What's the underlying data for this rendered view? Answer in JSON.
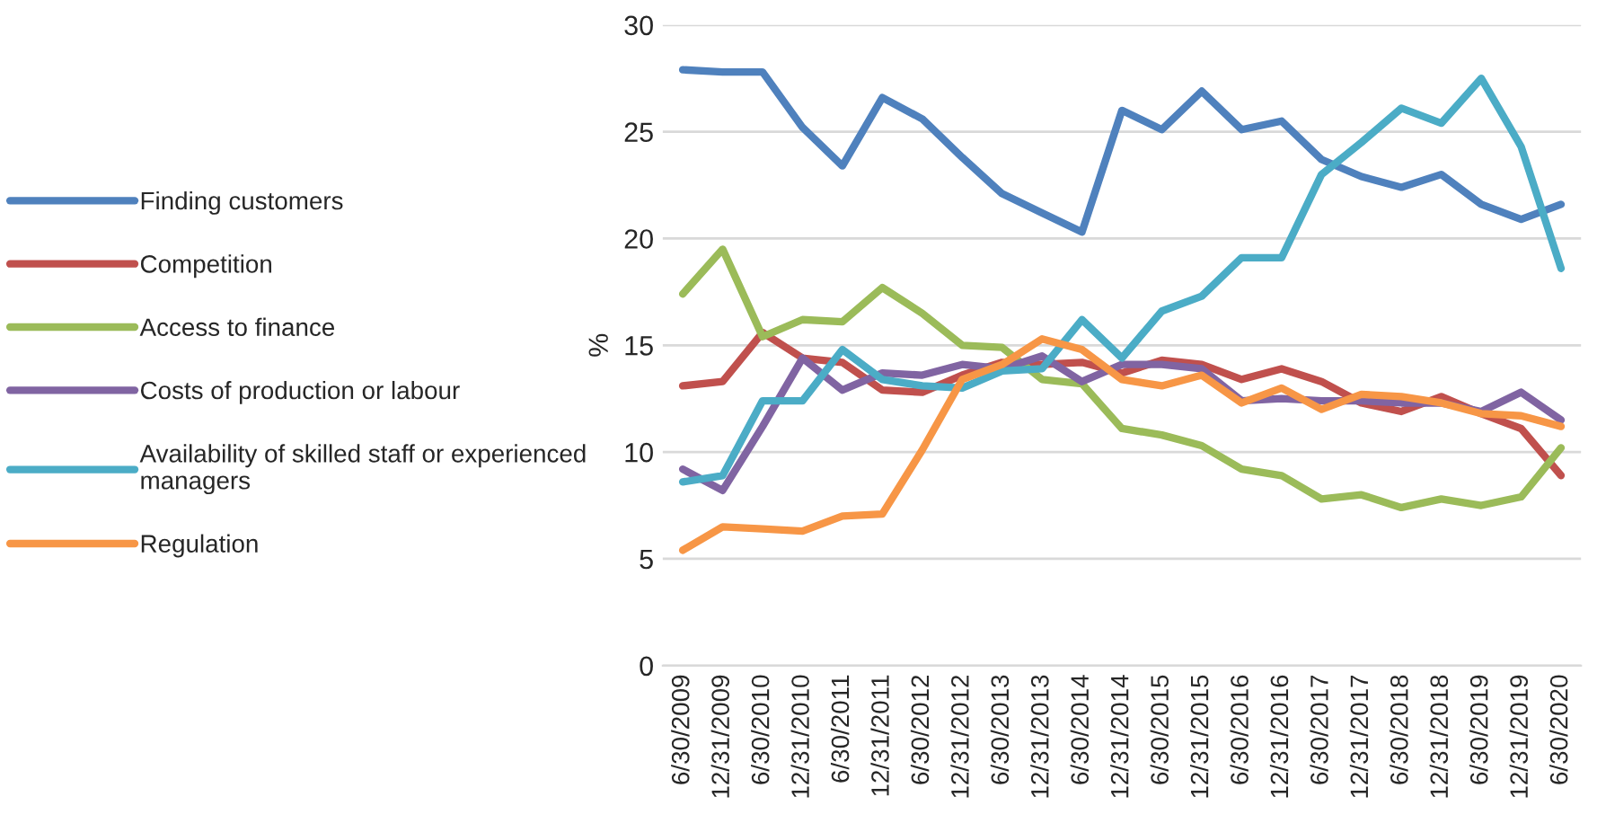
{
  "chart_data": {
    "type": "line",
    "ylabel": "%",
    "categories": [
      "6/30/2009",
      "12/31/2009",
      "6/30/2010",
      "12/31/2010",
      "6/30/2011",
      "12/31/2011",
      "6/30/2012",
      "12/31/2012",
      "6/30/2013",
      "12/31/2013",
      "6/30/2014",
      "12/31/2014",
      "6/30/2015",
      "12/31/2015",
      "6/30/2016",
      "12/31/2016",
      "6/30/2017",
      "12/31/2017",
      "6/30/2018",
      "12/31/2018",
      "6/30/2019",
      "12/31/2019",
      "6/30/2020"
    ],
    "series": [
      {
        "name": "Finding customers",
        "color": "#4f81bd",
        "values": [
          27.9,
          27.8,
          27.8,
          25.2,
          23.4,
          26.6,
          25.6,
          23.8,
          22.1,
          21.2,
          20.3,
          26.0,
          25.1,
          26.9,
          25.1,
          25.5,
          23.7,
          22.9,
          22.4,
          23.0,
          21.6,
          20.9,
          21.6
        ]
      },
      {
        "name": "Competition",
        "color": "#c0504d",
        "values": [
          13.1,
          13.3,
          15.6,
          14.4,
          14.2,
          12.9,
          12.8,
          13.6,
          14.2,
          14.1,
          14.2,
          13.7,
          14.3,
          14.1,
          13.4,
          13.9,
          13.3,
          12.3,
          11.9,
          12.6,
          11.8,
          11.1,
          8.9
        ]
      },
      {
        "name": "Access to finance",
        "color": "#9bbb59",
        "values": [
          17.4,
          19.5,
          15.4,
          16.2,
          16.1,
          17.7,
          16.5,
          15.0,
          14.9,
          13.4,
          13.2,
          11.1,
          10.8,
          10.3,
          9.2,
          8.9,
          7.8,
          8.0,
          7.4,
          7.8,
          7.5,
          7.9,
          10.2
        ]
      },
      {
        "name": "Costs of production or labour",
        "color": "#8064a2",
        "values": [
          9.2,
          8.2,
          11.2,
          14.4,
          12.9,
          13.7,
          13.6,
          14.1,
          13.9,
          14.5,
          13.3,
          14.1,
          14.1,
          13.9,
          12.4,
          12.5,
          12.4,
          12.4,
          12.3,
          12.3,
          11.9,
          12.8,
          11.5
        ]
      },
      {
        "name": "Availability of skilled staff or experienced\nmanagers",
        "color": "#4bacc6",
        "values": [
          8.6,
          8.9,
          12.4,
          12.4,
          14.8,
          13.4,
          13.1,
          13.0,
          13.8,
          13.9,
          16.2,
          14.4,
          16.6,
          17.3,
          19.1,
          19.1,
          23.0,
          24.5,
          26.1,
          25.4,
          27.5,
          24.3,
          18.6
        ]
      },
      {
        "name": "Regulation",
        "color": "#f79646",
        "values": [
          5.4,
          6.5,
          6.4,
          6.3,
          7.0,
          7.1,
          10.1,
          13.4,
          14.1,
          15.3,
          14.8,
          13.4,
          13.1,
          13.6,
          12.3,
          13.0,
          12.0,
          12.7,
          12.6,
          12.3,
          11.8,
          11.7,
          11.2
        ]
      }
    ],
    "ylim": [
      0,
      30
    ],
    "yticks": [
      0,
      5,
      10,
      15,
      20,
      25,
      30
    ],
    "grid": "y",
    "legend": "left",
    "marker": "none",
    "line_style": "solid"
  }
}
